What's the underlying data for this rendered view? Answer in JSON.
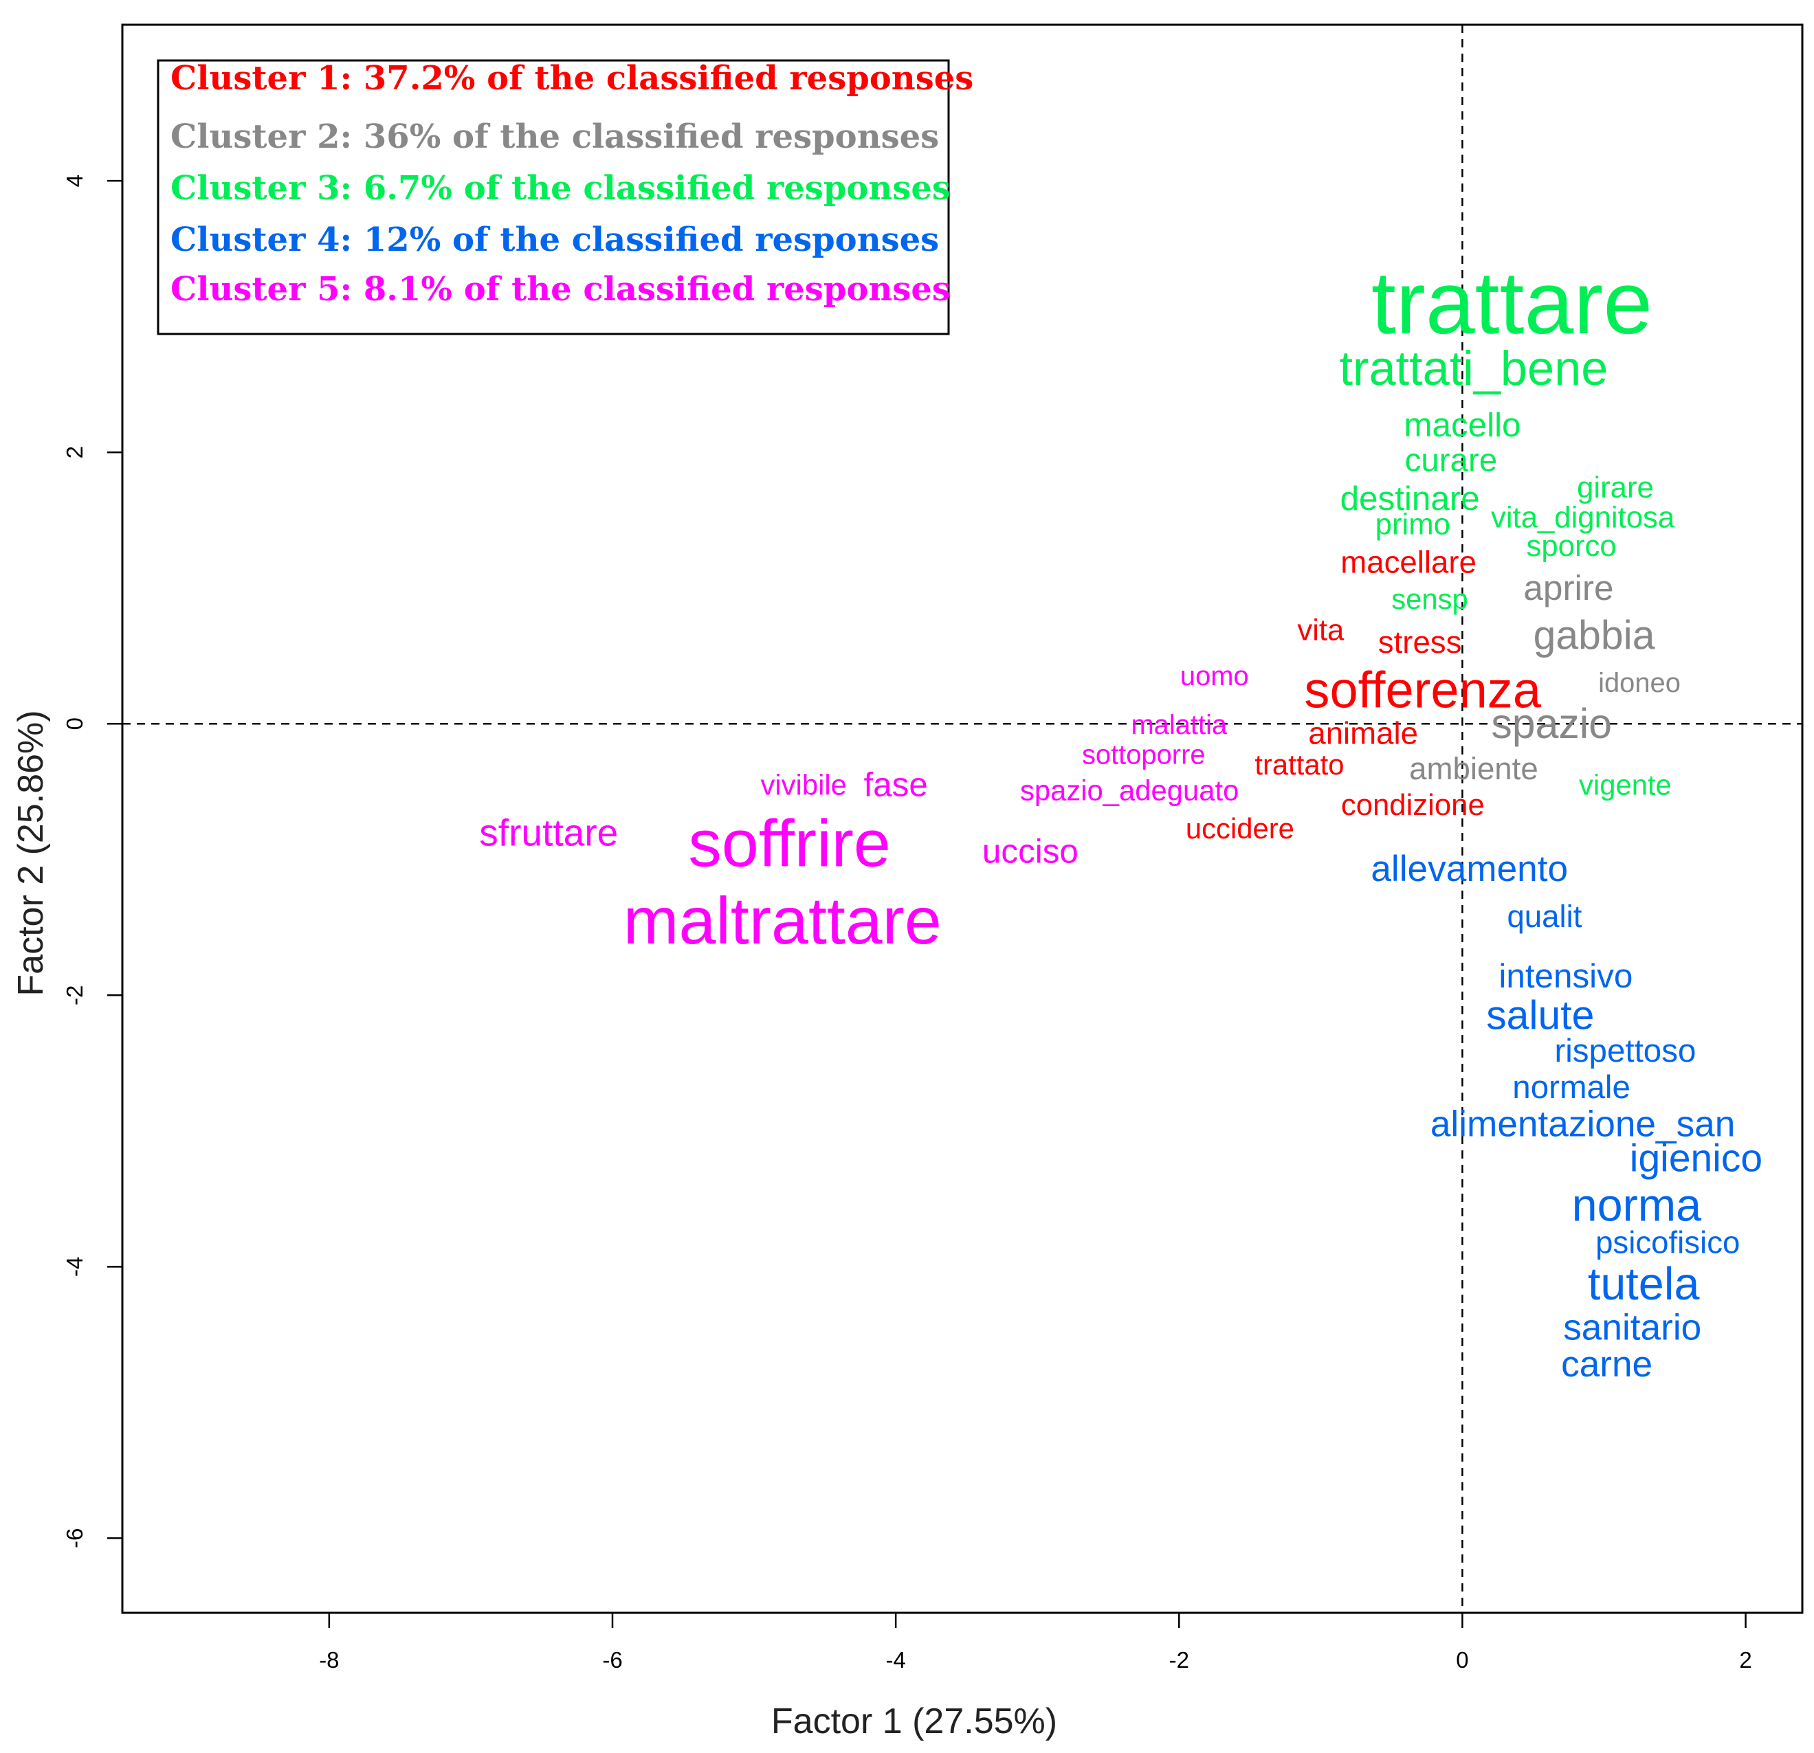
{
  "chart_data": {
    "type": "scatter",
    "xlabel": "Factor 1 (27.55%)",
    "ylabel": "Factor 2 (25.86%)",
    "xlim": [
      -9.46,
      2.4
    ],
    "ylim": [
      -6.55,
      5.15
    ],
    "x_ticks": [
      -8,
      -6,
      -4,
      -2,
      0,
      2
    ],
    "y_ticks": [
      -6,
      -4,
      -2,
      0,
      2,
      4
    ],
    "reference_lines": {
      "x": 0,
      "y": 0,
      "style": "dashed"
    },
    "legend": {
      "placement": "top-left",
      "entries": [
        {
          "text": "Cluster 1: 37.2% of the classified responses",
          "color": "#ff0000"
        },
        {
          "text": "Cluster 2: 36% of the classified responses",
          "color": "#888888"
        },
        {
          "text": "Cluster 3: 6.7% of the classified responses",
          "color": "#00ee55"
        },
        {
          "text": "Cluster 4: 12% of the classified responses",
          "color": "#0066ee"
        },
        {
          "text": "Cluster 5: 8.1% of the classified responses",
          "color": "#ff00ff"
        }
      ]
    },
    "colors": {
      "1": "#ff0000",
      "2": "#888888",
      "3": "#00ee55",
      "4": "#0066ee",
      "5": "#ff00ff"
    },
    "points": [
      {
        "label": "trattare",
        "x": 0.35,
        "y": 3.1,
        "cluster": 3,
        "weight": 3.4
      },
      {
        "label": "trattati_bene",
        "x": 0.08,
        "y": 2.62,
        "cluster": 3,
        "weight": 1.85
      },
      {
        "label": "macello",
        "x": 0.0,
        "y": 2.2,
        "cluster": 3,
        "weight": 1.3
      },
      {
        "label": "curare",
        "x": -0.08,
        "y": 1.94,
        "cluster": 3,
        "weight": 1.25
      },
      {
        "label": "destinare",
        "x": -0.37,
        "y": 1.66,
        "cluster": 3,
        "weight": 1.3
      },
      {
        "label": "girare",
        "x": 1.08,
        "y": 1.74,
        "cluster": 3,
        "weight": 1.15
      },
      {
        "label": "primo",
        "x": -0.35,
        "y": 1.47,
        "cluster": 3,
        "weight": 1.15
      },
      {
        "label": "vita_dignitosa",
        "x": 0.85,
        "y": 1.52,
        "cluster": 3,
        "weight": 1.15
      },
      {
        "label": "sporco",
        "x": 0.77,
        "y": 1.31,
        "cluster": 3,
        "weight": 1.15
      },
      {
        "label": "sensp",
        "x": -0.23,
        "y": 0.92,
        "cluster": 3,
        "weight": 1.1
      },
      {
        "label": "vigente",
        "x": 1.15,
        "y": -0.45,
        "cluster": 3,
        "weight": 1.1
      },
      {
        "label": "macellare",
        "x": -0.38,
        "y": 1.19,
        "cluster": 1,
        "weight": 1.2
      },
      {
        "label": "vita",
        "x": -1.0,
        "y": 0.69,
        "cluster": 1,
        "weight": 1.15
      },
      {
        "label": "stress",
        "x": -0.3,
        "y": 0.6,
        "cluster": 1,
        "weight": 1.2
      },
      {
        "label": "sofferenza",
        "x": -0.28,
        "y": 0.25,
        "cluster": 1,
        "weight": 1.95
      },
      {
        "label": "animale",
        "x": -0.7,
        "y": -0.07,
        "cluster": 1,
        "weight": 1.2
      },
      {
        "label": "trattato",
        "x": -1.15,
        "y": -0.3,
        "cluster": 1,
        "weight": 1.1
      },
      {
        "label": "condizione",
        "x": -0.35,
        "y": -0.6,
        "cluster": 1,
        "weight": 1.15
      },
      {
        "label": "uccidere",
        "x": -1.57,
        "y": -0.77,
        "cluster": 1,
        "weight": 1.1
      },
      {
        "label": "aprire",
        "x": 0.75,
        "y": 1.0,
        "cluster": 2,
        "weight": 1.35
      },
      {
        "label": "gabbia",
        "x": 0.93,
        "y": 0.65,
        "cluster": 2,
        "weight": 1.55
      },
      {
        "label": "idoneo",
        "x": 1.25,
        "y": 0.3,
        "cluster": 2,
        "weight": 1.05
      },
      {
        "label": "spazio",
        "x": 0.63,
        "y": 0.0,
        "cluster": 2,
        "weight": 1.6
      },
      {
        "label": "ambiente",
        "x": 0.08,
        "y": -0.33,
        "cluster": 2,
        "weight": 1.2
      },
      {
        "label": "allevamento",
        "x": 0.05,
        "y": -1.07,
        "cluster": 4,
        "weight": 1.4
      },
      {
        "label": "qualit",
        "x": 0.58,
        "y": -1.42,
        "cluster": 4,
        "weight": 1.2
      },
      {
        "label": "intensivo",
        "x": 0.73,
        "y": -1.86,
        "cluster": 4,
        "weight": 1.3
      },
      {
        "label": "salute",
        "x": 0.55,
        "y": -2.15,
        "cluster": 4,
        "weight": 1.55
      },
      {
        "label": "rispettoso",
        "x": 1.15,
        "y": -2.41,
        "cluster": 4,
        "weight": 1.25
      },
      {
        "label": "normale",
        "x": 0.77,
        "y": -2.68,
        "cluster": 4,
        "weight": 1.25
      },
      {
        "label": "alimentazione_san",
        "x": 0.85,
        "y": -2.95,
        "cluster": 4,
        "weight": 1.4
      },
      {
        "label": "igienico",
        "x": 1.65,
        "y": -3.2,
        "cluster": 4,
        "weight": 1.5
      },
      {
        "label": "norma",
        "x": 1.23,
        "y": -3.55,
        "cluster": 4,
        "weight": 1.75
      },
      {
        "label": "psicofisico",
        "x": 1.45,
        "y": -3.82,
        "cluster": 4,
        "weight": 1.2
      },
      {
        "label": "tutela",
        "x": 1.28,
        "y": -4.13,
        "cluster": 4,
        "weight": 1.75
      },
      {
        "label": "sanitario",
        "x": 1.2,
        "y": -4.45,
        "cluster": 4,
        "weight": 1.4
      },
      {
        "label": "carne",
        "x": 1.02,
        "y": -4.72,
        "cluster": 4,
        "weight": 1.4
      },
      {
        "label": "uomo",
        "x": -1.75,
        "y": 0.35,
        "cluster": 5,
        "weight": 1.05
      },
      {
        "label": "malattia",
        "x": -2.0,
        "y": -0.01,
        "cluster": 5,
        "weight": 1.05
      },
      {
        "label": "sottoporre",
        "x": -2.25,
        "y": -0.23,
        "cluster": 5,
        "weight": 1.05
      },
      {
        "label": "vivibile",
        "x": -4.65,
        "y": -0.45,
        "cluster": 5,
        "weight": 1.1
      },
      {
        "label": "fase",
        "x": -4.0,
        "y": -0.45,
        "cluster": 5,
        "weight": 1.3
      },
      {
        "label": "spazio_adeguato",
        "x": -2.35,
        "y": -0.49,
        "cluster": 5,
        "weight": 1.1
      },
      {
        "label": "sfruttare",
        "x": -6.45,
        "y": -0.8,
        "cluster": 5,
        "weight": 1.45
      },
      {
        "label": "soffrire",
        "x": -4.75,
        "y": -0.88,
        "cluster": 5,
        "weight": 2.55
      },
      {
        "label": "ucciso",
        "x": -3.05,
        "y": -0.94,
        "cluster": 5,
        "weight": 1.3
      },
      {
        "label": "maltrattare",
        "x": -4.8,
        "y": -1.45,
        "cluster": 5,
        "weight": 2.55
      }
    ]
  }
}
